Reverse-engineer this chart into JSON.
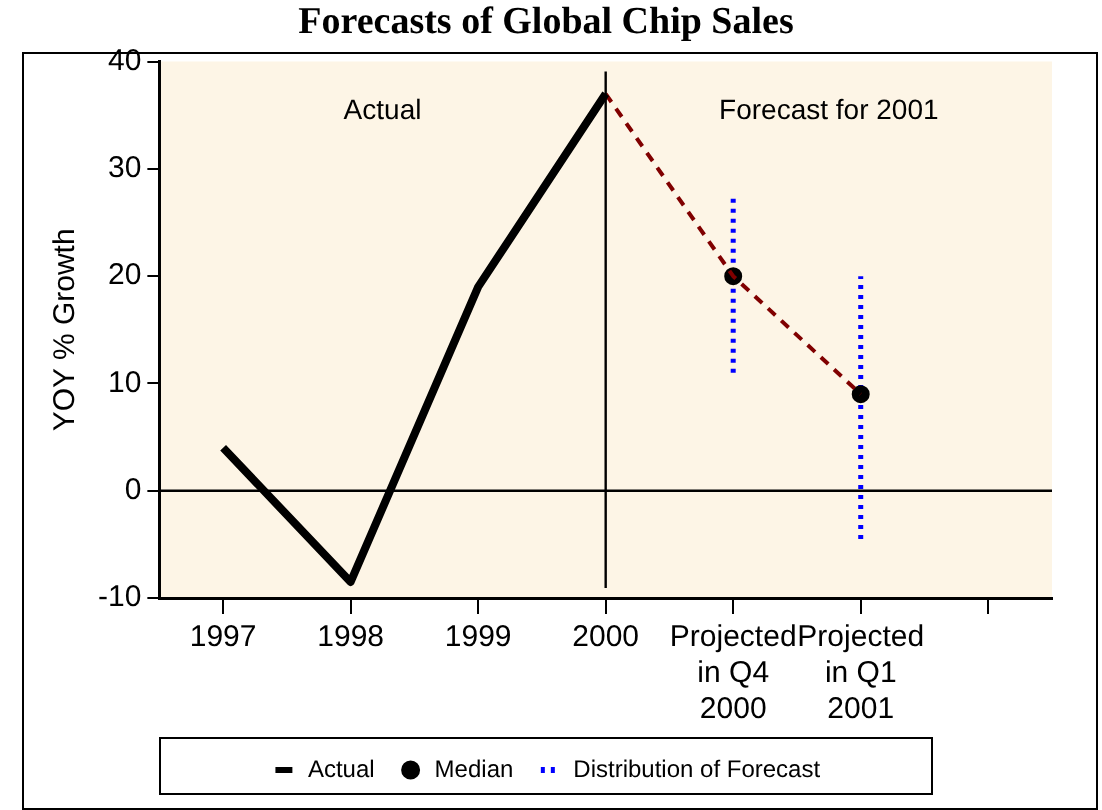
{
  "chart_data": {
    "type": "line",
    "title": "Forecasts of Global Chip Sales",
    "ylabel": "YOY % Growth",
    "categories": [
      "1997",
      "1998",
      "1999",
      "2000",
      "Projected\nin Q4\n2000",
      "Projected\nin Q1\n2001",
      null
    ],
    "series": [
      {
        "name": "Actual",
        "type": "line",
        "color": "#000000",
        "line_style": "solid",
        "marker": "none",
        "values": [
          4,
          -8.5,
          19,
          37,
          null,
          null,
          null
        ]
      },
      {
        "type": "line",
        "color": "#800000",
        "line_style": "dashed",
        "marker": "none",
        "values": [
          null,
          null,
          null,
          37,
          20,
          9,
          null
        ]
      },
      {
        "name": "Median",
        "type": "scatter",
        "color": "#000000",
        "marker": "circle",
        "values": [
          null,
          null,
          null,
          null,
          20,
          9,
          null
        ]
      },
      {
        "name": "Distribution of Forecast",
        "type": "line",
        "color": "#0000ff",
        "line_style": "dotted",
        "marker": "none",
        "x": [
          "Projected\nin Q4\n2000",
          "Projected\nin Q4\n2000"
        ],
        "values": [
          11,
          27.5
        ]
      },
      {
        "type": "line",
        "color": "#0000ff",
        "line_style": "dotted",
        "marker": "none",
        "x": [
          "Projected\nin Q1\n2001",
          "Projected\nin Q1\n2001"
        ],
        "values": [
          -4.5,
          20
        ]
      }
    ],
    "ylim": [
      -10,
      40
    ],
    "yticks": [
      -10,
      0,
      10,
      20,
      30,
      40
    ],
    "grid": false,
    "legend": "bottom",
    "ref_lines": [
      {
        "axis": "x",
        "value": "2000"
      },
      {
        "axis": "y",
        "value": 0
      }
    ],
    "annotations": [
      "Actual",
      "Forecast for 2001"
    ]
  }
}
